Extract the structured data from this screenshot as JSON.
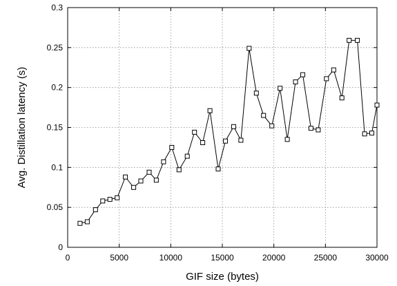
{
  "chart_data": {
    "type": "line",
    "title": "",
    "xlabel": "GIF size (bytes)",
    "ylabel": "Avg. Distillation latency (s)",
    "xlim": [
      0,
      30000
    ],
    "ylim": [
      0,
      0.3
    ],
    "xticks": [
      0,
      5000,
      10000,
      15000,
      20000,
      25000,
      30000
    ],
    "yticks": [
      0,
      0.05,
      0.1,
      0.15,
      0.2,
      0.25,
      0.3
    ],
    "xtick_labels": [
      "0",
      "5000",
      "10000",
      "15000",
      "20000",
      "25000",
      "30000"
    ],
    "ytick_labels": [
      "0",
      "0.05",
      "0.1",
      "0.15",
      "0.2",
      "0.25",
      "0.3"
    ],
    "grid": true,
    "legend": "none",
    "marker": "square",
    "color": "#000000",
    "series": [
      {
        "x": [
          1200,
          1900,
          2700,
          3400,
          4100,
          4800,
          5600,
          6400,
          7100,
          7900,
          8600,
          9300,
          10100,
          10800,
          11600,
          12300,
          13100,
          13800,
          14600,
          15300,
          16100,
          16800,
          17600,
          18300,
          19000,
          19800,
          20600,
          21300,
          22100,
          22800,
          23600,
          24300,
          25100,
          25800,
          26600,
          27300,
          28100,
          28800,
          29500,
          30000
        ],
        "y": [
          0.03,
          0.032,
          0.047,
          0.058,
          0.06,
          0.062,
          0.088,
          0.075,
          0.083,
          0.094,
          0.084,
          0.107,
          0.125,
          0.097,
          0.114,
          0.144,
          0.131,
          0.171,
          0.098,
          0.133,
          0.151,
          0.134,
          0.249,
          0.193,
          0.165,
          0.152,
          0.199,
          0.135,
          0.207,
          0.216,
          0.149,
          0.147,
          0.211,
          0.222,
          0.187,
          0.259,
          0.259,
          0.142,
          0.143,
          0.178
        ]
      }
    ]
  }
}
